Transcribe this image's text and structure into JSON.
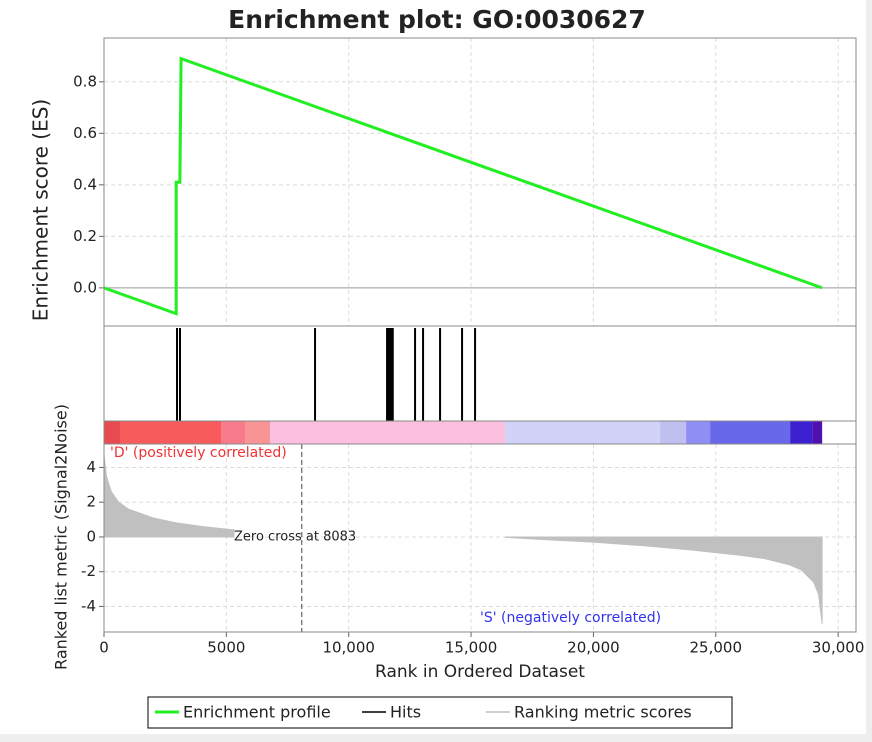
{
  "chart_data": {
    "type": "gsea",
    "title": "Enrichment plot: GO:0030627",
    "xlabel": "Rank in Ordered Dataset",
    "xlim": [
      0,
      30730
    ],
    "xticks": [
      0,
      5000,
      {
        "value": 10000,
        "label": "10,000"
      },
      {
        "value": 15000,
        "label": "15,000"
      },
      {
        "value": 20000,
        "label": "20,000"
      },
      {
        "value": 25000,
        "label": "25,000"
      },
      {
        "value": 30000,
        "label": "30,000"
      }
    ],
    "grid": true,
    "es": {
      "name": "Enrichment profile",
      "ylabel": "Enrichment score (ES)",
      "color": "#22ee22",
      "ylim": [
        -0.148,
        0.97
      ],
      "yticks": [
        {
          "value": 0,
          "label": "0.0"
        },
        0.2,
        0.4,
        0.6,
        0.8
      ],
      "x": [
        0,
        2950,
        2950,
        3100,
        3150,
        29346
      ],
      "values": [
        0,
        -0.1,
        0.41,
        0.41,
        0.89,
        0
      ]
    },
    "hits": {
      "name": "Hits",
      "color": "#000000",
      "x": [
        2984,
        3106,
        8624,
        11567,
        11620,
        11680,
        11740,
        11800,
        12711,
        13038,
        13733,
        14632,
        15163
      ]
    },
    "band": [
      {
        "start": 0,
        "end": 654,
        "color": "#e84a50"
      },
      {
        "start": 654,
        "end": 4782,
        "color": "#f95a5c"
      },
      {
        "start": 4782,
        "end": 5763,
        "color": "#f87b8b"
      },
      {
        "start": 5763,
        "end": 6785,
        "color": "#f99494"
      },
      {
        "start": 6785,
        "end": 16390,
        "color": "#fbc0e0"
      },
      {
        "start": 16390,
        "end": 22725,
        "color": "#d2d2f8"
      },
      {
        "start": 22725,
        "end": 23787,
        "color": "#c0c0f0"
      },
      {
        "start": 23787,
        "end": 24768,
        "color": "#8e8ef5"
      },
      {
        "start": 24768,
        "end": 28038,
        "color": "#6868ea"
      },
      {
        "start": 28038,
        "end": 28937,
        "color": "#3c20d0"
      },
      {
        "start": 28937,
        "end": 29346,
        "color": "#5010b0"
      }
    ],
    "metric": {
      "name": "Ranking metric scores",
      "ylabel": "Ranked list metric (Signal2Noise)",
      "color": "#c0c0c0",
      "ylim": [
        -5.47,
        5.35
      ],
      "yticks": [
        -4,
        -2,
        0,
        2,
        4
      ],
      "x": [
        0,
        100,
        300,
        600,
        1000,
        2000,
        3000,
        4000,
        5000,
        5313,
        10000,
        16400,
        18000,
        20000,
        22000,
        24000,
        25000,
        26000,
        27000,
        28000,
        28500,
        29000,
        29200,
        29346
      ],
      "values": [
        4.7,
        3.5,
        2.6,
        2.0,
        1.6,
        1.1,
        0.8,
        0.6,
        0.45,
        0.4,
        null,
        -0.02,
        -0.15,
        -0.3,
        -0.5,
        -0.75,
        -0.9,
        -1.05,
        -1.25,
        -1.6,
        -1.9,
        -2.6,
        -3.3,
        -5.0
      ]
    },
    "zero_cross": {
      "value": 8083,
      "label": "Zero cross at 8083"
    },
    "pos_label": "'D' (positively correlated)",
    "neg_label": "'S' (negatively correlated)"
  }
}
